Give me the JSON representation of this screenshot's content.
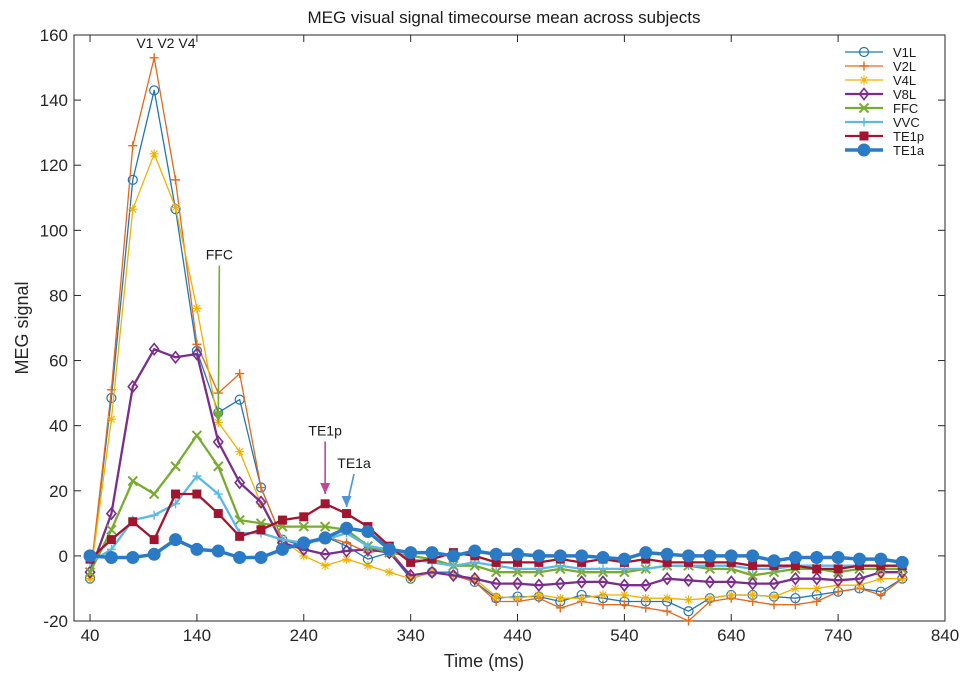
{
  "chart_data": {
    "type": "line",
    "title": "MEG visual signal timecourse mean across subjects",
    "xlabel": "Time (ms)",
    "ylabel": "MEG signal",
    "xlim": [
      25,
      840
    ],
    "ylim": [
      -20,
      160
    ],
    "xticks": [
      40,
      140,
      240,
      340,
      440,
      540,
      640,
      740,
      840
    ],
    "yticks": [
      -20,
      0,
      20,
      40,
      60,
      80,
      100,
      120,
      140,
      160
    ],
    "xtick_labels": [
      "40",
      "140",
      "240",
      "340",
      "440",
      "540",
      "640",
      "740",
      "840"
    ],
    "ytick_labels": [
      "-20",
      "0",
      "20",
      "40",
      "60",
      "80",
      "100",
      "120",
      "140",
      "160"
    ],
    "grid": false,
    "legend_position": "top-right",
    "x": [
      40,
      60,
      80,
      100,
      120,
      140,
      160,
      180,
      200,
      220,
      240,
      260,
      280,
      300,
      320,
      340,
      360,
      380,
      400,
      420,
      440,
      460,
      480,
      500,
      520,
      540,
      560,
      580,
      600,
      620,
      640,
      660,
      680,
      700,
      720,
      740,
      760,
      780,
      800
    ],
    "series": [
      {
        "name": "V1L",
        "color": "#1f77b4",
        "marker": "circle-open",
        "width": 1.3,
        "values": [
          -7,
          48.5,
          115.5,
          143,
          106.5,
          63,
          44,
          48,
          21,
          5,
          3,
          6,
          3,
          -1,
          1,
          -7,
          -5,
          -5,
          -8,
          -13,
          -12.5,
          -12.5,
          -14,
          -12,
          -13,
          -14,
          -14,
          -14,
          -17,
          -13,
          -12,
          -12,
          -12.5,
          -13,
          -12,
          -11,
          -10,
          -11,
          -7
        ]
      },
      {
        "name": "V2L",
        "color": "#e06a1f",
        "marker": "plus",
        "width": 1.3,
        "values": [
          -7,
          51,
          126,
          153,
          115.5,
          65,
          50,
          56,
          21,
          5,
          4,
          6,
          4,
          1,
          2,
          -6,
          -5,
          -6,
          -8,
          -14,
          -14,
          -13,
          -16,
          -14,
          -15,
          -15,
          -16,
          -17,
          -20,
          -14,
          -13,
          -14,
          -15,
          -15,
          -14,
          -11,
          -10,
          -12,
          -7
        ]
      },
      {
        "name": "V4L",
        "color": "#f2b100",
        "marker": "asterisk",
        "width": 1.3,
        "values": [
          -7,
          42,
          106.5,
          123.5,
          107,
          76,
          41,
          32,
          16,
          5,
          0,
          -3,
          -1,
          -3,
          -5,
          -7,
          -5,
          -6,
          -7,
          -12.5,
          -13,
          -12,
          -13,
          -13,
          -12,
          -12,
          -13,
          -13,
          -13.5,
          -13,
          -12,
          -12,
          -12.5,
          -10,
          -10,
          -9,
          -9,
          -7,
          -7
        ]
      },
      {
        "name": "V8L",
        "color": "#7b2d8e",
        "marker": "diamond-open",
        "width": 2.3,
        "values": [
          -5,
          13,
          52,
          63.5,
          61,
          62,
          35,
          22.5,
          16.5,
          4,
          2,
          0.5,
          1.5,
          2,
          1,
          -6,
          -5,
          -6,
          -7,
          -8.5,
          -8.5,
          -9,
          -8.5,
          -8,
          -8,
          -9,
          -9,
          -7,
          -7.5,
          -8,
          -8,
          -8.5,
          -8.5,
          -7,
          -7,
          -7.5,
          -7,
          -5,
          -5
        ]
      },
      {
        "name": "FFC",
        "color": "#77ac30",
        "marker": "x",
        "width": 2.3,
        "values": [
          -5,
          8,
          23,
          19,
          27.5,
          37,
          27.5,
          11,
          10,
          9,
          9,
          9,
          8,
          3,
          1,
          0,
          -1,
          -3,
          -3,
          -5,
          -5,
          -5,
          -4,
          -5,
          -5,
          -5,
          -4,
          -3,
          -3,
          -4,
          -4,
          -6,
          -5,
          -4,
          -4,
          -5,
          -4,
          -4,
          -4
        ]
      },
      {
        "name": "VVC",
        "color": "#5bb8e8",
        "marker": "plus",
        "width": 2.3,
        "values": [
          -2,
          2,
          11,
          12.5,
          16,
          24.5,
          19,
          7,
          7,
          5,
          4,
          5,
          7,
          3,
          2,
          -1,
          -2,
          -3,
          -2,
          -3,
          -4,
          -4,
          -3,
          -4,
          -4,
          -4,
          -4,
          -3,
          -3,
          -3,
          -3,
          -4,
          -4,
          -3,
          -3,
          -3,
          -3,
          -3,
          -3
        ]
      },
      {
        "name": "TE1p",
        "color": "#a2142f",
        "marker": "square",
        "width": 2.3,
        "values": [
          -1,
          5,
          10.5,
          5,
          19,
          19,
          13,
          6,
          8,
          11,
          12,
          16,
          13,
          9,
          3,
          -2,
          -1,
          1,
          0,
          -2,
          -2,
          -2,
          -1,
          -2,
          -1,
          -2,
          -1,
          -2,
          -2,
          -2,
          -2,
          -3,
          -3,
          -3,
          -4,
          -4,
          -3,
          -3,
          -3
        ]
      },
      {
        "name": "TE1a",
        "color": "#2a7ac6",
        "marker": "circle-filled",
        "width": 3.5,
        "values": [
          0,
          -0.5,
          -0.5,
          0.5,
          5,
          2,
          1.5,
          -0.5,
          -0.5,
          2,
          4,
          5.5,
          8.5,
          7.5,
          2,
          1,
          1,
          0,
          1.5,
          0.5,
          0.5,
          0,
          0,
          0,
          -0.5,
          -1,
          1,
          0.5,
          0,
          0,
          0,
          0,
          -1.5,
          -0.5,
          -0.5,
          -0.5,
          -1,
          -1,
          -2
        ]
      }
    ],
    "annotations": [
      {
        "text": "V1 V2 V4",
        "x": 111,
        "y": 156
      },
      {
        "text": "FFC",
        "x": 161,
        "y": 91,
        "arrow_to": [
          160,
          41
        ],
        "arrow_color": "#77ac30"
      },
      {
        "text": "TE1p",
        "x": 260,
        "y": 37,
        "arrow_to": [
          260,
          19
        ],
        "arrow_color": "#c2479a"
      },
      {
        "text": "TE1a",
        "x": 287,
        "y": 27,
        "arrow_to": [
          280,
          15
        ],
        "arrow_color": "#4f95d1"
      }
    ]
  }
}
